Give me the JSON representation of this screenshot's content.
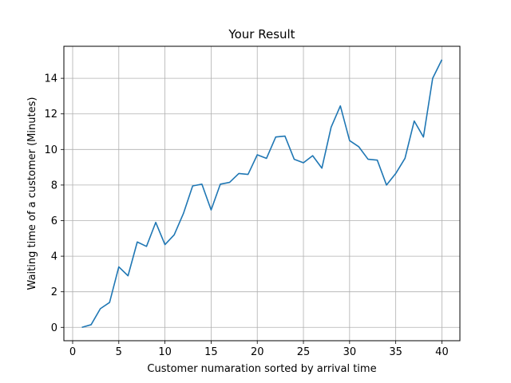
{
  "chart_data": {
    "type": "line",
    "title": "Your Result",
    "xlabel": "Customer numaration sorted by arrival time",
    "ylabel": "Waiting time of a customer (Minutes)",
    "xlim": [
      -0.95,
      41.95
    ],
    "ylim": [
      -0.75,
      15.8
    ],
    "xticks": [
      0,
      5,
      10,
      15,
      20,
      25,
      30,
      35,
      40
    ],
    "yticks": [
      0,
      2,
      4,
      6,
      8,
      10,
      12,
      14
    ],
    "grid": true,
    "series": [
      {
        "color": "#1f77b4",
        "x": [
          1,
          2,
          3,
          4,
          5,
          6,
          7,
          8,
          9,
          10,
          11,
          12,
          13,
          14,
          15,
          16,
          17,
          18,
          19,
          20,
          21,
          22,
          23,
          24,
          25,
          26,
          27,
          28,
          29,
          30,
          31,
          32,
          33,
          34,
          35,
          36,
          37,
          38,
          39,
          40
        ],
        "y": [
          0,
          0.15,
          1.05,
          1.4,
          3.4,
          2.9,
          4.8,
          4.55,
          5.9,
          4.65,
          5.2,
          6.4,
          7.95,
          8.05,
          6.6,
          8.05,
          8.15,
          8.65,
          8.6,
          9.7,
          9.5,
          10.7,
          10.75,
          9.45,
          9.25,
          9.65,
          8.95,
          11.25,
          12.45,
          10.5,
          10.15,
          9.45,
          9.4,
          8.0,
          8.65,
          9.5,
          11.6,
          10.7,
          14.0,
          15.05
        ]
      }
    ]
  }
}
